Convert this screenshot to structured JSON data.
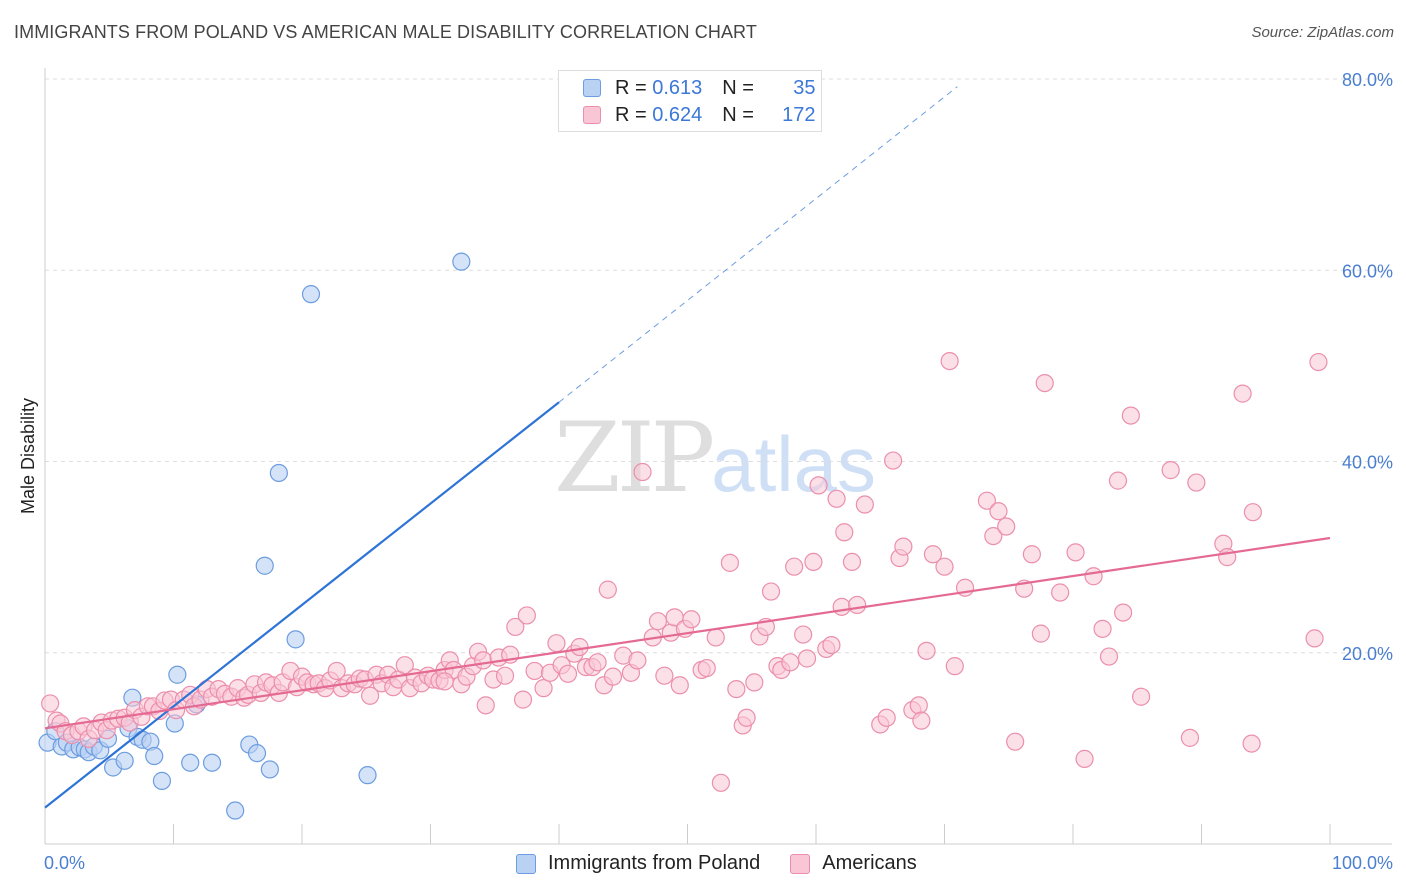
{
  "title": "IMMIGRANTS FROM POLAND VS AMERICAN MALE DISABILITY CORRELATION CHART",
  "source": "Source: ZipAtlas.com",
  "watermark": {
    "zip": "ZIP",
    "atlas": "atlas"
  },
  "legend": {
    "rows": [
      {
        "r_label": "R =",
        "r_value": "0.613",
        "n_label": "N =",
        "n_value": "35"
      },
      {
        "r_label": "R =",
        "r_value": "0.624",
        "n_label": "N =",
        "n_value": "172"
      }
    ]
  },
  "bottom_legend": [
    "Immigrants from Poland",
    "Americans"
  ],
  "colors": {
    "blue_fill": "#b9d1f3",
    "blue_stroke": "#6c9de0",
    "blue_line": "#2e74d6",
    "pink_fill": "#f9c6d5",
    "pink_stroke": "#eb8fac",
    "pink_line": "#e46a94",
    "grid": "#dddddd",
    "tick_text": "#4a7fd0"
  },
  "chart_data": {
    "type": "scatter",
    "title": "IMMIGRANTS FROM POLAND VS AMERICAN MALE DISABILITY CORRELATION CHART",
    "xlabel": "",
    "ylabel": "Male Disability",
    "xlim": [
      0,
      100
    ],
    "ylim": [
      0,
      80
    ],
    "x_ticks": [
      "0.0%",
      "100.0%"
    ],
    "y_ticks": [
      "20.0%",
      "40.0%",
      "60.0%",
      "80.0%"
    ],
    "grid": "horizontal dashed",
    "legend_position": "top-center",
    "series": [
      {
        "name": "Immigrants from Poland",
        "R": 0.613,
        "N": 35,
        "trend": {
          "x0": 0,
          "y0": 3.8,
          "x1": 40,
          "y1": 46.2,
          "dashed_to": [
            71,
            79.2
          ]
        },
        "points": [
          [
            0.2,
            10.6
          ],
          [
            0.8,
            11.8
          ],
          [
            1.3,
            10.2
          ],
          [
            1.7,
            10.6
          ],
          [
            2.2,
            9.9
          ],
          [
            2.7,
            10.1
          ],
          [
            3.1,
            9.9
          ],
          [
            3.4,
            9.6
          ],
          [
            3.8,
            10.2
          ],
          [
            4.3,
            9.8
          ],
          [
            4.9,
            11.0
          ],
          [
            5.3,
            8.0
          ],
          [
            6.2,
            8.7
          ],
          [
            6.5,
            12.1
          ],
          [
            6.8,
            15.3
          ],
          [
            7.2,
            11.2
          ],
          [
            7.6,
            10.9
          ],
          [
            8.2,
            10.7
          ],
          [
            8.5,
            9.2
          ],
          [
            9.1,
            6.6
          ],
          [
            10.1,
            12.6
          ],
          [
            10.3,
            17.7
          ],
          [
            11.3,
            8.5
          ],
          [
            11.8,
            14.6
          ],
          [
            13.0,
            8.5
          ],
          [
            14.8,
            3.5
          ],
          [
            15.9,
            10.4
          ],
          [
            16.5,
            9.5
          ],
          [
            17.1,
            29.1
          ],
          [
            17.5,
            7.8
          ],
          [
            18.2,
            38.8
          ],
          [
            19.5,
            21.4
          ],
          [
            20.7,
            57.5
          ],
          [
            25.1,
            7.2
          ],
          [
            32.4,
            60.9
          ]
        ]
      },
      {
        "name": "Americans",
        "R": 0.624,
        "N": 172,
        "trend": {
          "x0": 0,
          "y0": 12.1,
          "x1": 100,
          "y1": 32.0
        },
        "points": [
          [
            0.4,
            14.7
          ],
          [
            0.9,
            12.9
          ],
          [
            1.2,
            12.6
          ],
          [
            1.6,
            11.8
          ],
          [
            2.1,
            11.4
          ],
          [
            2.6,
            11.8
          ],
          [
            3.0,
            12.3
          ],
          [
            3.4,
            11.0
          ],
          [
            3.9,
            11.9
          ],
          [
            4.4,
            12.7
          ],
          [
            4.8,
            11.9
          ],
          [
            5.2,
            12.9
          ],
          [
            5.7,
            13.1
          ],
          [
            6.2,
            13.2
          ],
          [
            6.6,
            12.7
          ],
          [
            7.0,
            14.0
          ],
          [
            7.5,
            13.3
          ],
          [
            8.0,
            14.4
          ],
          [
            8.4,
            14.4
          ],
          [
            8.9,
            13.9
          ],
          [
            9.3,
            15.0
          ],
          [
            9.8,
            15.1
          ],
          [
            10.2,
            14.0
          ],
          [
            10.8,
            15.1
          ],
          [
            11.3,
            15.6
          ],
          [
            11.6,
            14.4
          ],
          [
            12.1,
            15.1
          ],
          [
            12.6,
            16.2
          ],
          [
            13.0,
            15.4
          ],
          [
            13.5,
            16.2
          ],
          [
            14.0,
            15.7
          ],
          [
            14.5,
            15.4
          ],
          [
            15.0,
            16.3
          ],
          [
            15.5,
            15.3
          ],
          [
            15.8,
            15.6
          ],
          [
            16.3,
            16.7
          ],
          [
            16.8,
            15.8
          ],
          [
            17.2,
            16.9
          ],
          [
            17.7,
            16.6
          ],
          [
            18.2,
            15.8
          ],
          [
            18.5,
            16.9
          ],
          [
            19.1,
            18.1
          ],
          [
            19.6,
            16.4
          ],
          [
            20.0,
            17.5
          ],
          [
            20.4,
            16.9
          ],
          [
            20.9,
            16.7
          ],
          [
            21.3,
            16.8
          ],
          [
            21.8,
            16.3
          ],
          [
            22.2,
            17.1
          ],
          [
            22.7,
            18.1
          ],
          [
            23.1,
            16.3
          ],
          [
            23.6,
            16.8
          ],
          [
            24.1,
            16.7
          ],
          [
            24.5,
            17.3
          ],
          [
            24.9,
            17.2
          ],
          [
            25.3,
            15.5
          ],
          [
            25.8,
            17.7
          ],
          [
            26.2,
            16.8
          ],
          [
            26.7,
            17.7
          ],
          [
            27.1,
            16.4
          ],
          [
            27.5,
            17.2
          ],
          [
            28.0,
            18.7
          ],
          [
            28.4,
            16.3
          ],
          [
            28.8,
            17.4
          ],
          [
            29.3,
            16.8
          ],
          [
            29.8,
            17.6
          ],
          [
            30.2,
            17.2
          ],
          [
            30.7,
            17.1
          ],
          [
            31.1,
            18.2
          ],
          [
            31.5,
            19.2
          ],
          [
            31.8,
            18.2
          ],
          [
            32.4,
            16.7
          ],
          [
            32.8,
            17.5
          ],
          [
            33.3,
            18.6
          ],
          [
            33.7,
            20.1
          ],
          [
            34.1,
            19.2
          ],
          [
            34.3,
            14.5
          ],
          [
            34.9,
            17.2
          ],
          [
            35.3,
            19.5
          ],
          [
            35.8,
            17.6
          ],
          [
            36.2,
            19.8
          ],
          [
            36.6,
            22.7
          ],
          [
            37.2,
            15.1
          ],
          [
            37.5,
            23.9
          ],
          [
            38.1,
            18.1
          ],
          [
            38.8,
            16.3
          ],
          [
            39.3,
            17.9
          ],
          [
            39.8,
            21.0
          ],
          [
            40.2,
            18.7
          ],
          [
            40.7,
            17.8
          ],
          [
            41.2,
            19.9
          ],
          [
            41.6,
            20.6
          ],
          [
            42.1,
            18.5
          ],
          [
            42.6,
            18.5
          ],
          [
            43.0,
            19.0
          ],
          [
            43.5,
            16.6
          ],
          [
            43.8,
            26.6
          ],
          [
            44.2,
            17.5
          ],
          [
            45.0,
            19.7
          ],
          [
            45.6,
            17.9
          ],
          [
            46.1,
            19.2
          ],
          [
            46.5,
            38.9
          ],
          [
            47.3,
            21.6
          ],
          [
            47.7,
            23.3
          ],
          [
            48.2,
            17.6
          ],
          [
            48.7,
            22.1
          ],
          [
            49.0,
            23.7
          ],
          [
            49.4,
            16.6
          ],
          [
            49.8,
            22.5
          ],
          [
            50.3,
            23.5
          ],
          [
            51.1,
            18.2
          ],
          [
            51.5,
            18.4
          ],
          [
            52.2,
            21.6
          ],
          [
            52.6,
            6.4
          ],
          [
            53.3,
            29.4
          ],
          [
            53.8,
            16.2
          ],
          [
            54.3,
            12.4
          ],
          [
            54.6,
            13.2
          ],
          [
            55.2,
            16.9
          ],
          [
            55.6,
            21.7
          ],
          [
            56.1,
            22.7
          ],
          [
            56.5,
            26.4
          ],
          [
            57.0,
            18.6
          ],
          [
            57.3,
            18.2
          ],
          [
            58.0,
            19.0
          ],
          [
            58.3,
            29.0
          ],
          [
            59.0,
            21.9
          ],
          [
            59.3,
            19.4
          ],
          [
            59.8,
            29.5
          ],
          [
            60.2,
            37.5
          ],
          [
            60.8,
            20.4
          ],
          [
            61.2,
            20.8
          ],
          [
            61.6,
            36.1
          ],
          [
            62.0,
            24.8
          ],
          [
            62.2,
            32.6
          ],
          [
            62.8,
            29.5
          ],
          [
            63.2,
            25.0
          ],
          [
            63.8,
            35.5
          ],
          [
            65.0,
            12.5
          ],
          [
            65.5,
            13.2
          ],
          [
            66.0,
            40.1
          ],
          [
            66.5,
            29.9
          ],
          [
            66.8,
            31.1
          ],
          [
            67.5,
            14.0
          ],
          [
            68.0,
            14.5
          ],
          [
            68.2,
            12.9
          ],
          [
            68.6,
            20.2
          ],
          [
            69.1,
            30.3
          ],
          [
            70.0,
            29.0
          ],
          [
            70.4,
            50.5
          ],
          [
            70.8,
            18.6
          ],
          [
            71.6,
            26.8
          ],
          [
            73.3,
            35.9
          ],
          [
            73.8,
            32.2
          ],
          [
            74.2,
            34.8
          ],
          [
            74.8,
            33.2
          ],
          [
            75.5,
            10.7
          ],
          [
            76.2,
            26.7
          ],
          [
            76.8,
            30.3
          ],
          [
            77.5,
            22.0
          ],
          [
            77.8,
            48.2
          ],
          [
            79.0,
            26.3
          ],
          [
            80.2,
            30.5
          ],
          [
            80.9,
            8.9
          ],
          [
            81.6,
            28.0
          ],
          [
            82.3,
            22.5
          ],
          [
            82.8,
            19.6
          ],
          [
            83.5,
            38.0
          ],
          [
            83.9,
            24.2
          ],
          [
            84.5,
            44.8
          ],
          [
            85.3,
            15.4
          ],
          [
            87.6,
            39.1
          ],
          [
            89.1,
            11.1
          ],
          [
            89.6,
            37.8
          ],
          [
            91.7,
            31.4
          ],
          [
            92.0,
            30.0
          ],
          [
            93.2,
            47.1
          ],
          [
            93.9,
            10.5
          ],
          [
            94.0,
            34.7
          ],
          [
            98.8,
            21.5
          ],
          [
            99.1,
            50.4
          ],
          [
            31.1,
            17.0
          ]
        ]
      }
    ]
  }
}
